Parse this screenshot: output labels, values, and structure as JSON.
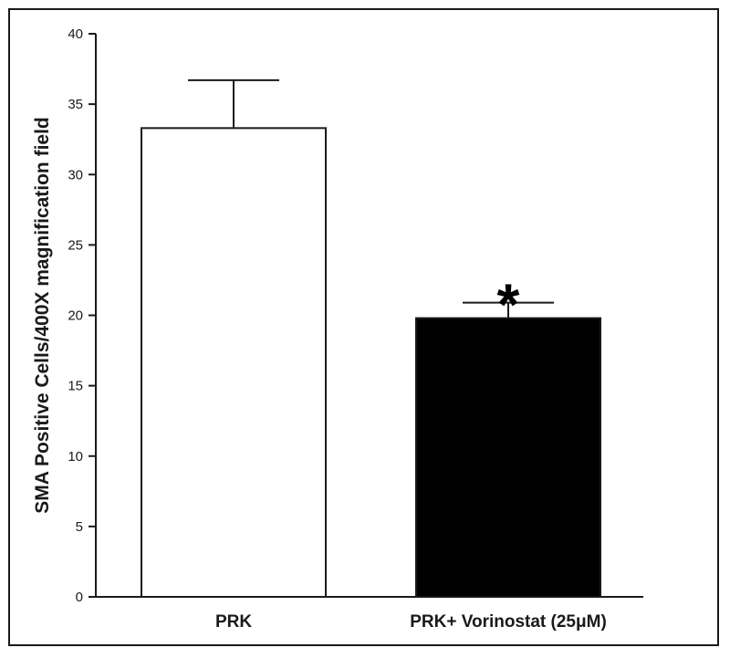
{
  "chart_data": {
    "type": "bar",
    "categories": [
      "PRK",
      "PRK+ Vorinostat (25μM)"
    ],
    "values": [
      33.3,
      19.8
    ],
    "errors": [
      3.4,
      1.1
    ],
    "bar_colors": [
      "#ffffff",
      "#000000"
    ],
    "annotations": [
      "",
      "*"
    ],
    "title": "",
    "xlabel": "",
    "ylabel": "SMA Positive Cells/400X magnification field",
    "ylim": [
      0,
      40
    ],
    "yticks": [
      0,
      5,
      10,
      15,
      20,
      25,
      30,
      35,
      40
    ],
    "grid": false
  }
}
